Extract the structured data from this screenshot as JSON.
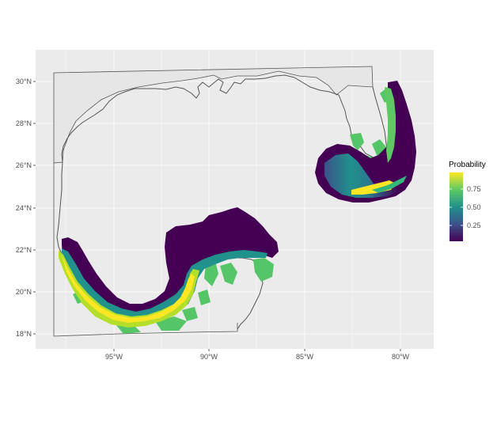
{
  "map": {
    "x_ticks": [
      "95°W",
      "90°W",
      "85°W",
      "80°W"
    ],
    "y_ticks": [
      "18°N",
      "20°N",
      "22°N",
      "24°N",
      "26°N",
      "28°N",
      "30°N"
    ],
    "panel_background": "#ebebeb",
    "grid_color": "#ffffff",
    "coastline_color": "#555555",
    "land_green": "#55c667",
    "low_purple": "#440154"
  },
  "legend": {
    "title": "Probability",
    "ticks": [
      "0.75",
      "0.50",
      "0.25"
    ],
    "colors": [
      "#fde725",
      "#5ec962",
      "#21918c",
      "#3b528b",
      "#440154"
    ]
  }
}
